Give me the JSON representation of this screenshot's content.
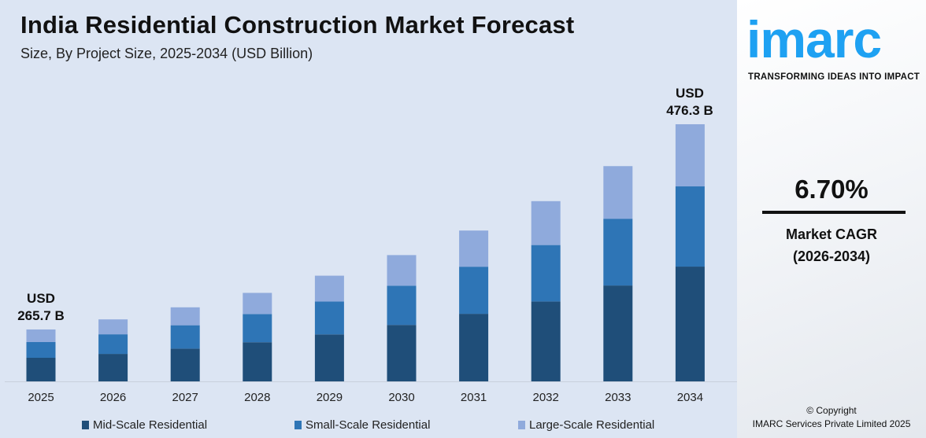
{
  "header": {
    "title": "India Residential Construction Market Forecast",
    "subtitle": "Size, By Project Size, 2025-2034 (USD Billion)"
  },
  "chart_data": {
    "type": "bar",
    "stacked": true,
    "title": "India Residential Construction Market Forecast",
    "subtitle": "Size, By Project Size, 2025-2034 (USD Billion)",
    "categories": [
      "2025",
      "2026",
      "2027",
      "2028",
      "2029",
      "2030",
      "2031",
      "2032",
      "2033",
      "2034"
    ],
    "series": [
      {
        "name": "Mid-Scale Residential",
        "color": "#1f4e79",
        "values": [
          120.8,
          125.6,
          133.7,
          142.8,
          153.1,
          164.3,
          175.6,
          185.5,
          198.8,
          212.6
        ]
      },
      {
        "name": "Small-Scale Residential",
        "color": "#2e75b6",
        "values": [
          80.5,
          89.7,
          95.5,
          102.8,
          107.1,
          114.2,
          122.5,
          131.0,
          138.5,
          148.6
        ]
      },
      {
        "name": "Large-Scale Residential",
        "color": "#8faadc",
        "values": [
          64.4,
          68.2,
          73.3,
          77.2,
          84.2,
          89.0,
          94.0,
          101.9,
          109.1,
          115.1
        ]
      }
    ],
    "annotations": [
      {
        "category": "2025",
        "line1": "USD",
        "line2": "265.7 B"
      },
      {
        "category": "2034",
        "line1": "USD",
        "line2": "476.3 B"
      }
    ],
    "grid": false,
    "legend": "bottom",
    "xlabel": "",
    "ylabel": ""
  },
  "panel": {
    "logo": "imarc",
    "tagline": "TRANSFORMING IDEAS INTO IMPACT",
    "cagr_value": "6.70%",
    "cagr_label": "Market CAGR",
    "cagr_period": "(2026-2034)",
    "copyright": "© Copyright",
    "company": "IMARC Services Private Limited 2025"
  }
}
